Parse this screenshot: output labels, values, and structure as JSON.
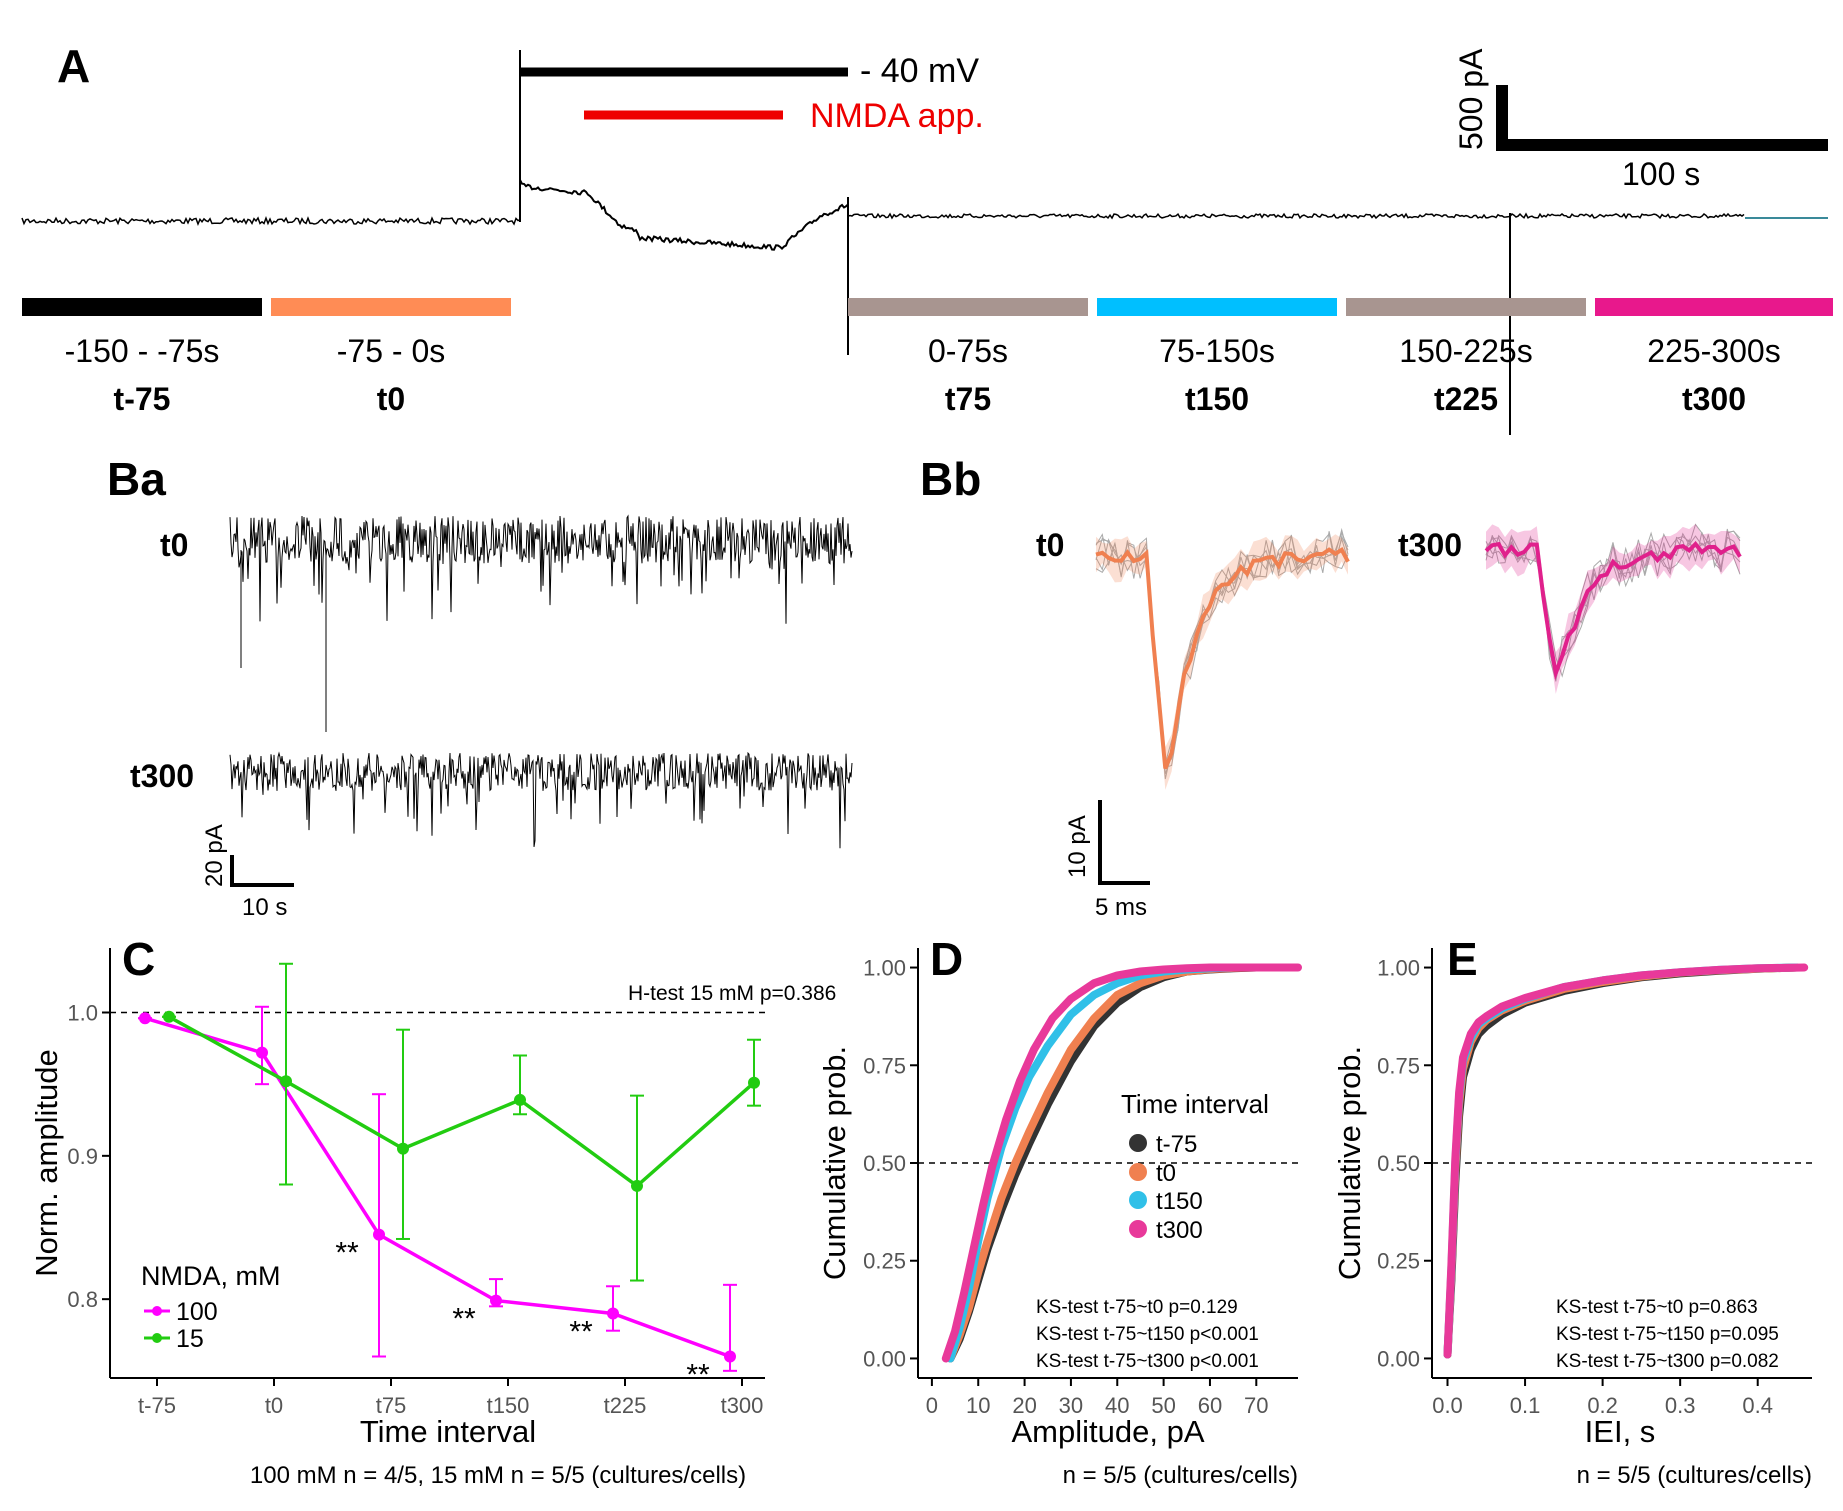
{
  "panelA": {
    "label": "A",
    "voltage_label": "- 40 mV",
    "nmda_label": "NMDA app.",
    "scale_y": "500 pA",
    "scale_x": "100 s",
    "intervals": [
      {
        "range": "-150 - -75s",
        "name": "t-75",
        "color": "#000000"
      },
      {
        "range": "-75 - 0s",
        "name": "t0",
        "color": "#FF8C55"
      },
      {
        "range": "0-75s",
        "name": "t75",
        "color": "#A89590"
      },
      {
        "range": "75-150s",
        "name": "t150",
        "color": "#00BFFF"
      },
      {
        "range": "150-225s",
        "name": "t225",
        "color": "#A89590"
      },
      {
        "range": "225-300s",
        "name": "t300",
        "color": "#E8188C"
      }
    ]
  },
  "panelBa": {
    "label": "Ba",
    "trace1": "t0",
    "trace2": "t300",
    "scale_y": "20 pA",
    "scale_x": "10 s"
  },
  "panelBb": {
    "label": "Bb",
    "trace1": "t0",
    "trace2": "t300",
    "scale_y": "10 pA",
    "scale_x": "5 ms"
  },
  "chart_data": [
    {
      "panel": "C",
      "type": "line",
      "xlabel": "Time interval",
      "ylabel": "Norm. amplitude",
      "categories": [
        "t-75",
        "t0",
        "t75",
        "t150",
        "t225",
        "t300"
      ],
      "ylim": [
        0.745,
        1.045
      ],
      "yticks": [
        0.8,
        0.9,
        1.0
      ],
      "ytick_labels": [
        "0.8",
        "0.9",
        "1.0"
      ],
      "reference_line": 1.0,
      "annotation": "H-test 15 mM p=0.386",
      "legend_title": "NMDA, mM",
      "legend_position": "bottom-left",
      "series": [
        {
          "name": "100",
          "color": "#FF00FF",
          "values": [
            0.996,
            0.972,
            0.845,
            0.799,
            0.79,
            0.76
          ],
          "err_low": [
            0.996,
            0.95,
            0.76,
            0.795,
            0.778,
            0.75
          ],
          "err_high": [
            0.996,
            1.004,
            0.943,
            0.814,
            0.809,
            0.81
          ],
          "significance": [
            "",
            "",
            "**",
            "**",
            "**",
            "**"
          ]
        },
        {
          "name": "15",
          "color": "#22CC11",
          "values": [
            0.997,
            0.952,
            0.905,
            0.939,
            0.879,
            0.951
          ],
          "err_low": [
            0.997,
            0.88,
            0.842,
            0.929,
            0.813,
            0.935
          ],
          "err_high": [
            0.997,
            1.034,
            0.988,
            0.97,
            0.942,
            0.981
          ]
        }
      ],
      "caption": "100 mM n = 4/5, 15 mM n = 5/5 (cultures/cells)"
    },
    {
      "panel": "D",
      "type": "line",
      "xlabel": "Amplitude, pA",
      "ylabel": "Cumulative prob.",
      "xlim": [
        -3,
        79
      ],
      "ylim": [
        -0.05,
        1.05
      ],
      "xticks": [
        0,
        10,
        20,
        30,
        40,
        50,
        60,
        70
      ],
      "yticks": [
        0.0,
        0.25,
        0.5,
        0.75,
        1.0
      ],
      "ytick_labels": [
        "0.00",
        "0.25",
        "0.50",
        "0.75",
        "1.00"
      ],
      "reference_line": 0.5,
      "legend_title": "Time interval",
      "legend_position": "center-right",
      "series": [
        {
          "name": "t-75",
          "color": "#333333",
          "x": [
            4,
            6,
            8,
            10,
            12,
            15,
            18,
            21,
            25,
            30,
            35,
            40,
            45,
            50,
            55,
            60,
            65,
            70,
            74
          ],
          "y": [
            0.0,
            0.05,
            0.12,
            0.2,
            0.28,
            0.38,
            0.47,
            0.55,
            0.65,
            0.76,
            0.85,
            0.91,
            0.95,
            0.975,
            0.99,
            0.995,
            0.998,
            1.0,
            1.0
          ]
        },
        {
          "name": "t0",
          "color": "#F08050",
          "x": [
            4,
            6,
            8,
            10,
            12,
            15,
            18,
            21,
            25,
            30,
            35,
            40,
            45,
            50,
            55,
            60,
            65,
            70,
            74
          ],
          "y": [
            0.0,
            0.06,
            0.13,
            0.22,
            0.3,
            0.41,
            0.5,
            0.58,
            0.68,
            0.79,
            0.87,
            0.93,
            0.96,
            0.98,
            0.99,
            0.996,
            0.999,
            1.0,
            1.0
          ]
        },
        {
          "name": "t150",
          "color": "#30C0E8",
          "x": [
            4,
            6,
            8,
            10,
            12,
            15,
            18,
            21,
            25,
            30,
            35,
            40,
            45,
            50,
            55,
            60,
            65,
            70,
            74
          ],
          "y": [
            0.0,
            0.08,
            0.18,
            0.3,
            0.41,
            0.54,
            0.64,
            0.72,
            0.8,
            0.88,
            0.93,
            0.96,
            0.98,
            0.99,
            0.995,
            0.998,
            1.0,
            1.0,
            1.0
          ]
        },
        {
          "name": "t300",
          "color": "#E8399A",
          "x": [
            3,
            5,
            7,
            9,
            11,
            13,
            16,
            19,
            22,
            26,
            30,
            35,
            40,
            45,
            50,
            55,
            60,
            70,
            79
          ],
          "y": [
            0.0,
            0.07,
            0.17,
            0.28,
            0.39,
            0.49,
            0.61,
            0.71,
            0.79,
            0.87,
            0.92,
            0.96,
            0.98,
            0.99,
            0.995,
            0.998,
            1.0,
            1.0,
            1.0
          ]
        }
      ],
      "annotations": [
        "KS-test t-75~t0 p=0.129",
        "KS-test t-75~t150 p<0.001",
        "KS-test t-75~t300 p<0.001"
      ],
      "caption": "n = 5/5 (cultures/cells)"
    },
    {
      "panel": "E",
      "type": "line",
      "xlabel": "IEI, s",
      "ylabel": "Cumulative prob.",
      "xlim": [
        -0.02,
        0.47
      ],
      "ylim": [
        -0.05,
        1.05
      ],
      "xticks": [
        0.0,
        0.1,
        0.2,
        0.3,
        0.4
      ],
      "xtick_labels": [
        "0.0",
        "0.1",
        "0.2",
        "0.3",
        "0.4"
      ],
      "yticks": [
        0.0,
        0.25,
        0.5,
        0.75,
        1.0
      ],
      "ytick_labels": [
        "0.00",
        "0.25",
        "0.50",
        "0.75",
        "1.00"
      ],
      "reference_line": 0.5,
      "series": [
        {
          "name": "t-75",
          "color": "#333333",
          "x": [
            0.0,
            0.005,
            0.01,
            0.015,
            0.02,
            0.03,
            0.04,
            0.05,
            0.07,
            0.1,
            0.15,
            0.2,
            0.25,
            0.3,
            0.35,
            0.4,
            0.45
          ],
          "y": [
            0.01,
            0.2,
            0.45,
            0.62,
            0.72,
            0.79,
            0.83,
            0.85,
            0.88,
            0.91,
            0.94,
            0.96,
            0.975,
            0.985,
            0.992,
            0.997,
            1.0
          ]
        },
        {
          "name": "t0",
          "color": "#F08050",
          "x": [
            0.0,
            0.005,
            0.01,
            0.015,
            0.02,
            0.03,
            0.04,
            0.05,
            0.07,
            0.1,
            0.15,
            0.2,
            0.25,
            0.3,
            0.35,
            0.4,
            0.45
          ],
          "y": [
            0.01,
            0.22,
            0.48,
            0.65,
            0.74,
            0.81,
            0.845,
            0.865,
            0.89,
            0.915,
            0.945,
            0.963,
            0.977,
            0.987,
            0.993,
            0.997,
            1.0
          ]
        },
        {
          "name": "t150",
          "color": "#30C0E8",
          "x": [
            0.0,
            0.005,
            0.01,
            0.015,
            0.02,
            0.03,
            0.04,
            0.05,
            0.07,
            0.1,
            0.15,
            0.2,
            0.25,
            0.3,
            0.35,
            0.4,
            0.45
          ],
          "y": [
            0.01,
            0.23,
            0.5,
            0.67,
            0.76,
            0.82,
            0.855,
            0.87,
            0.895,
            0.92,
            0.95,
            0.967,
            0.98,
            0.988,
            0.994,
            0.998,
            1.0
          ]
        },
        {
          "name": "t300",
          "color": "#E8399A",
          "x": [
            0.0,
            0.005,
            0.01,
            0.015,
            0.02,
            0.03,
            0.04,
            0.05,
            0.07,
            0.1,
            0.15,
            0.2,
            0.25,
            0.3,
            0.35,
            0.4,
            0.46
          ],
          "y": [
            0.01,
            0.24,
            0.51,
            0.68,
            0.77,
            0.83,
            0.86,
            0.875,
            0.9,
            0.922,
            0.95,
            0.967,
            0.98,
            0.988,
            0.994,
            0.998,
            1.0
          ]
        }
      ],
      "annotations": [
        "KS-test t-75~t0 p=0.863",
        "KS-test t-75~t150 p=0.095",
        "KS-test t-75~t300 p=0.082"
      ],
      "caption": "n = 5/5 (cultures/cells)"
    }
  ]
}
